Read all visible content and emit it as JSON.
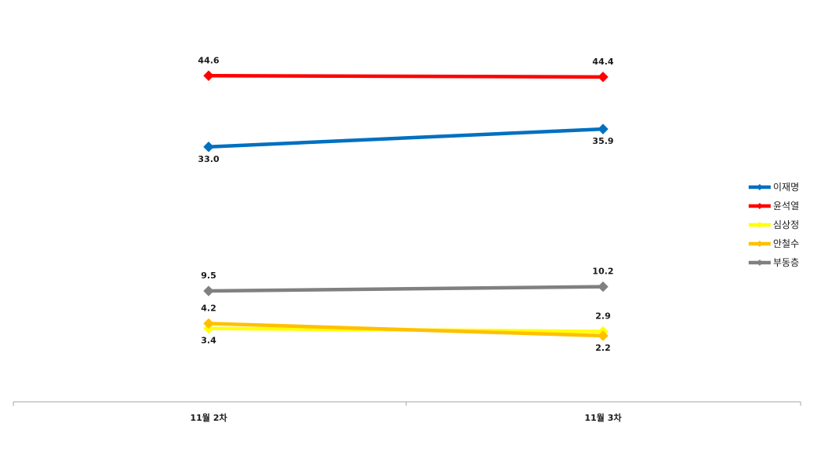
{
  "chart_data": {
    "type": "line",
    "categories": [
      "11월 2차",
      "11월 3차"
    ],
    "series": [
      {
        "name": "이재명",
        "values": [
          33.0,
          35.9
        ],
        "labels": [
          "33.0",
          "35.9"
        ],
        "color": "#0070c0",
        "label_pos": [
          "below",
          "below"
        ]
      },
      {
        "name": "윤석열",
        "values": [
          44.6,
          44.4
        ],
        "labels": [
          "44.6",
          "44.4"
        ],
        "color": "#ff0000",
        "label_pos": [
          "above",
          "above"
        ]
      },
      {
        "name": "심상정",
        "values": [
          3.4,
          2.9
        ],
        "labels": [
          "3.4",
          "2.9"
        ],
        "color": "#ffff00",
        "label_pos": [
          "below",
          "above"
        ]
      },
      {
        "name": "안철수",
        "values": [
          4.2,
          2.2
        ],
        "labels": [
          "4.2",
          "2.2"
        ],
        "color": "#ffc000",
        "label_pos": [
          "above",
          "below"
        ]
      },
      {
        "name": "부동층",
        "values": [
          9.5,
          10.2
        ],
        "labels": [
          "9.5",
          "10.2"
        ],
        "color": "#808080",
        "label_pos": [
          "above",
          "above"
        ]
      }
    ],
    "legend_position": "right",
    "grid": false
  }
}
